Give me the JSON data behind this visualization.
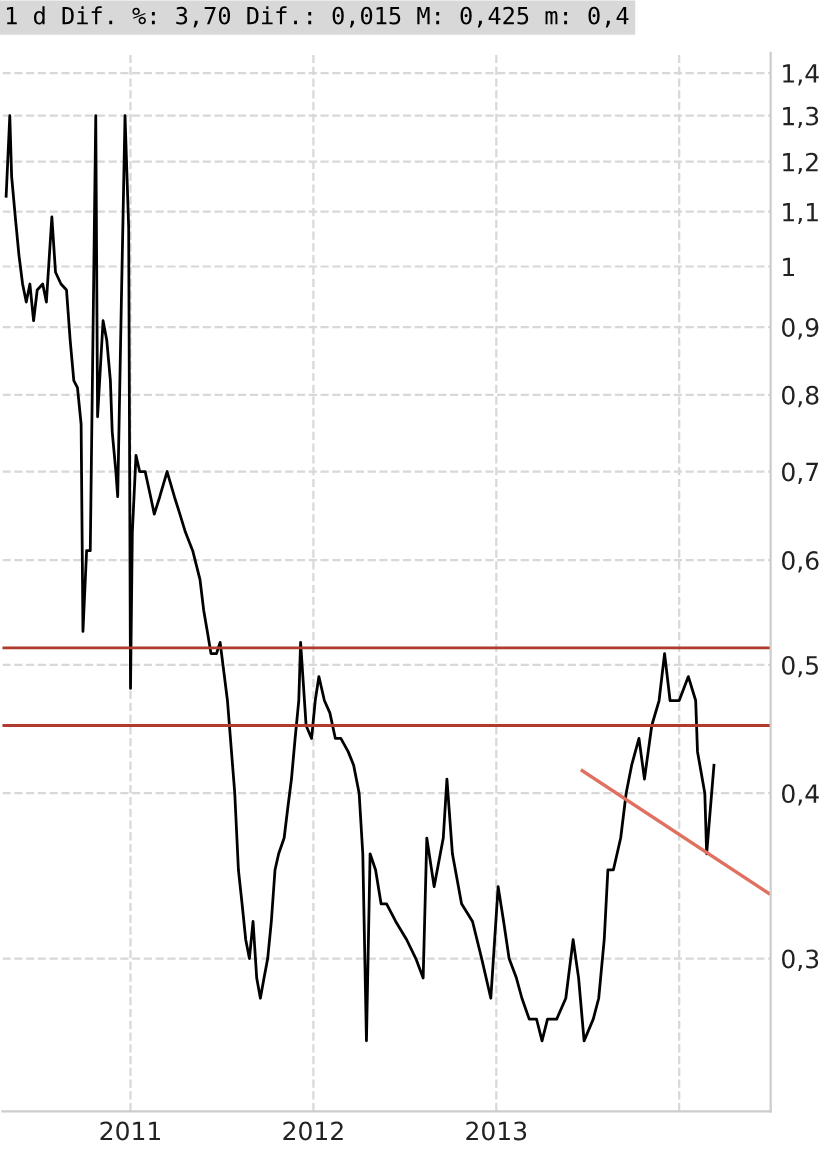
{
  "chart_data": {
    "type": "line",
    "title": "1 d Dif. %: 3,70 Dif.: 0,015 M: 0,425 m: 0,4",
    "log": "y",
    "grid": true,
    "marker": "none",
    "line_style": "solid",
    "xlim": [
      2010.3,
      2014.5
    ],
    "xticks": [
      2011,
      2012,
      2013,
      {
        "value": 2014,
        "label": null
      }
    ],
    "ylim": [
      0.23,
      1.45
    ],
    "yticks": [
      {
        "value": 0.3,
        "label": "0,3"
      },
      {
        "value": 0.4,
        "label": "0,4"
      },
      {
        "value": 0.5,
        "label": "0,5"
      },
      {
        "value": 0.6,
        "label": "0,6"
      },
      {
        "value": 0.7,
        "label": "0,7"
      },
      {
        "value": 0.8,
        "label": "0,8"
      },
      {
        "value": 0.9,
        "label": "0,9"
      },
      1,
      {
        "value": 1.1,
        "label": "1,1"
      },
      {
        "value": 1.2,
        "label": "1,2"
      },
      {
        "value": 1.3,
        "label": "1,3"
      },
      {
        "value": 1.4,
        "label": "1,4"
      }
    ],
    "ref_lines": [
      {
        "axis": "y",
        "value": 0.515,
        "label": null,
        "color": "#b03a2e"
      },
      {
        "axis": "y",
        "value": 0.45,
        "label": null,
        "color": "#b03a2e"
      }
    ],
    "series": [
      {
        "color": "#000000",
        "x": [
          2010.32,
          2010.34,
          2010.35,
          2010.37,
          2010.39,
          2010.41,
          2010.43,
          2010.45,
          2010.47,
          2010.49,
          2010.52,
          2010.54,
          2010.57,
          2010.59,
          2010.62,
          2010.65,
          2010.67,
          2010.69,
          2010.71,
          2010.73,
          2010.74,
          2010.76,
          2010.78,
          2010.81,
          2010.82,
          2010.85,
          2010.87,
          2010.89,
          2010.9,
          2010.92,
          2010.93,
          2010.95,
          2010.97,
          2010.99,
          2011.0,
          2011.01,
          2011.03,
          2011.05,
          2011.08,
          2011.11,
          2011.13,
          2011.16,
          2011.2,
          2011.24,
          2011.27,
          2011.3,
          2011.34,
          2011.38,
          2011.4,
          2011.42,
          2011.44,
          2011.47,
          2011.49,
          2011.53,
          2011.57,
          2011.59,
          2011.61,
          2011.63,
          2011.65,
          2011.67,
          2011.69,
          2011.71,
          2011.73,
          2011.75,
          2011.77,
          2011.79,
          2011.81,
          2011.84,
          2011.86,
          2011.88,
          2011.9,
          2011.92,
          2011.93,
          2011.96,
          2011.99,
          2012.01,
          2012.03,
          2012.06,
          2012.09,
          2012.12,
          2012.15,
          2012.19,
          2012.22,
          2012.25,
          2012.27,
          2012.29,
          2012.31,
          2012.34,
          2012.37,
          2012.4,
          2012.45,
          2012.51,
          2012.56,
          2012.6,
          2012.62,
          2012.66,
          2012.71,
          2012.73,
          2012.76,
          2012.81,
          2012.87,
          2012.92,
          2012.97,
          2013.01,
          2013.04,
          2013.07,
          2013.11,
          2013.14,
          2013.18,
          2013.22,
          2013.25,
          2013.28,
          2013.33,
          2013.38,
          2013.42,
          2013.45,
          2013.48,
          2013.53,
          2013.56,
          2013.59,
          2013.61,
          2013.64,
          2013.68,
          2013.71,
          2013.74,
          2013.78,
          2013.81,
          2013.85,
          2013.89,
          2013.92,
          2013.95,
          2014.0,
          2014.05,
          2014.09,
          2014.1,
          2014.14,
          2014.15,
          2014.19
        ],
        "values": [
          1.13,
          1.3,
          1.17,
          1.09,
          1.02,
          0.97,
          0.94,
          0.97,
          0.91,
          0.96,
          0.97,
          0.94,
          1.09,
          0.99,
          0.97,
          0.96,
          0.88,
          0.82,
          0.81,
          0.76,
          0.53,
          0.61,
          0.61,
          1.3,
          0.77,
          0.91,
          0.88,
          0.82,
          0.75,
          0.7,
          0.67,
          0.94,
          1.3,
          1.07,
          0.48,
          0.63,
          0.72,
          0.7,
          0.7,
          0.67,
          0.65,
          0.67,
          0.7,
          0.67,
          0.65,
          0.63,
          0.61,
          0.58,
          0.55,
          0.53,
          0.51,
          0.51,
          0.52,
          0.47,
          0.4,
          0.35,
          0.33,
          0.31,
          0.3,
          0.32,
          0.29,
          0.28,
          0.29,
          0.3,
          0.32,
          0.35,
          0.36,
          0.37,
          0.39,
          0.41,
          0.44,
          0.47,
          0.52,
          0.45,
          0.44,
          0.47,
          0.49,
          0.47,
          0.46,
          0.44,
          0.44,
          0.43,
          0.42,
          0.4,
          0.36,
          0.26,
          0.36,
          0.35,
          0.33,
          0.33,
          0.32,
          0.31,
          0.3,
          0.29,
          0.37,
          0.34,
          0.37,
          0.41,
          0.36,
          0.33,
          0.32,
          0.3,
          0.28,
          0.34,
          0.32,
          0.3,
          0.29,
          0.28,
          0.27,
          0.27,
          0.26,
          0.27,
          0.27,
          0.28,
          0.31,
          0.29,
          0.26,
          0.27,
          0.28,
          0.31,
          0.35,
          0.35,
          0.37,
          0.4,
          0.42,
          0.44,
          0.41,
          0.45,
          0.47,
          0.51,
          0.47,
          0.47,
          0.49,
          0.47,
          0.43,
          0.4,
          0.36,
          0.42
        ]
      },
      {
        "type": "line",
        "color": "#e07060",
        "x": [
          2013.47,
          2014.49
        ],
        "values": [
          0.416,
          0.336
        ]
      }
    ]
  }
}
